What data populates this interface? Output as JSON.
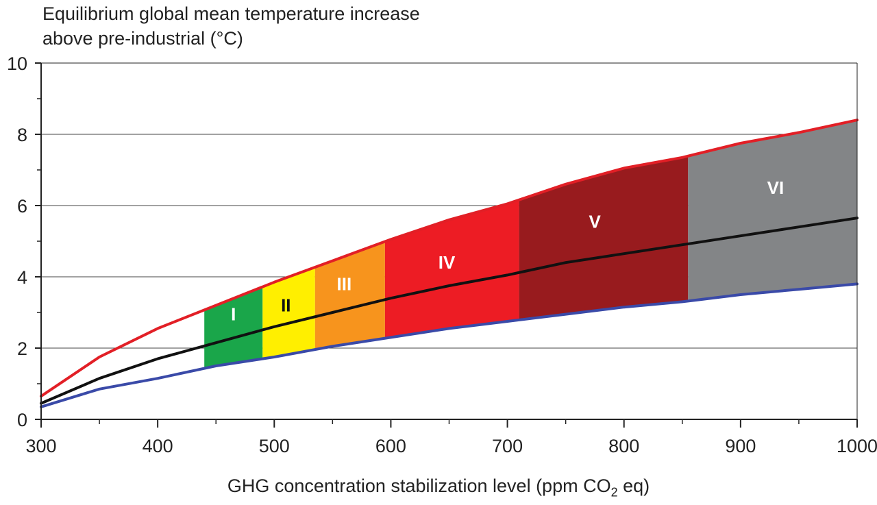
{
  "chart_data": {
    "type": "area",
    "ylabel_line1": "Equilibrium global mean temperature increase",
    "ylabel_line2": "above pre-industrial (°C)",
    "xlabel_pre": "GHG concentration stabilization level (ppm CO",
    "xlabel_sub": "2",
    "xlabel_post": " eq)",
    "xlim": [
      300,
      1000
    ],
    "ylim": [
      0,
      10
    ],
    "xticks": [
      300,
      400,
      500,
      600,
      700,
      800,
      900,
      1000
    ],
    "yticks": [
      0,
      2,
      4,
      6,
      8,
      10
    ],
    "grid": "horizontal",
    "series": [
      {
        "role": "upper",
        "color": "#e21f26",
        "x": [
          300,
          350,
          400,
          450,
          500,
          550,
          600,
          650,
          700,
          750,
          800,
          850,
          900,
          950,
          1000
        ],
        "y": [
          0.65,
          1.75,
          2.55,
          3.2,
          3.85,
          4.45,
          5.05,
          5.6,
          6.05,
          6.6,
          7.05,
          7.35,
          7.75,
          8.05,
          8.4
        ]
      },
      {
        "role": "best",
        "color": "#111111",
        "x": [
          300,
          350,
          400,
          450,
          500,
          550,
          600,
          650,
          700,
          750,
          800,
          850,
          900,
          950,
          1000
        ],
        "y": [
          0.45,
          1.15,
          1.7,
          2.15,
          2.6,
          3.0,
          3.4,
          3.75,
          4.05,
          4.4,
          4.65,
          4.9,
          5.15,
          5.4,
          5.65
        ]
      },
      {
        "role": "lower",
        "color": "#3a4aa8",
        "x": [
          300,
          350,
          400,
          450,
          500,
          550,
          600,
          650,
          700,
          750,
          800,
          850,
          900,
          950,
          1000
        ],
        "y": [
          0.35,
          0.85,
          1.15,
          1.5,
          1.75,
          2.05,
          2.3,
          2.55,
          2.75,
          2.95,
          3.15,
          3.3,
          3.5,
          3.65,
          3.8
        ]
      }
    ],
    "categories": [
      {
        "label": "I",
        "x0": 440,
        "x1": 490,
        "color": "#1aa64a",
        "text_color": "#ffffff",
        "label_x": 465,
        "label_y": 2.95
      },
      {
        "label": "II",
        "x0": 490,
        "x1": 535,
        "color": "#ffef00",
        "text_color": "#111111",
        "label_x": 510,
        "label_y": 3.2
      },
      {
        "label": "III",
        "x0": 535,
        "x1": 595,
        "color": "#f7941d",
        "text_color": "#ffffff",
        "label_x": 560,
        "label_y": 3.8
      },
      {
        "label": "IV",
        "x0": 595,
        "x1": 710,
        "color": "#ed1c24",
        "text_color": "#ffffff",
        "label_x": 648,
        "label_y": 4.4
      },
      {
        "label": "V",
        "x0": 710,
        "x1": 855,
        "color": "#981b1e",
        "text_color": "#ffffff",
        "label_x": 775,
        "label_y": 5.55
      },
      {
        "label": "VI",
        "x0": 855,
        "x1": 1000,
        "color": "#838587",
        "text_color": "#ffffff",
        "label_x": 930,
        "label_y": 6.5
      }
    ]
  }
}
